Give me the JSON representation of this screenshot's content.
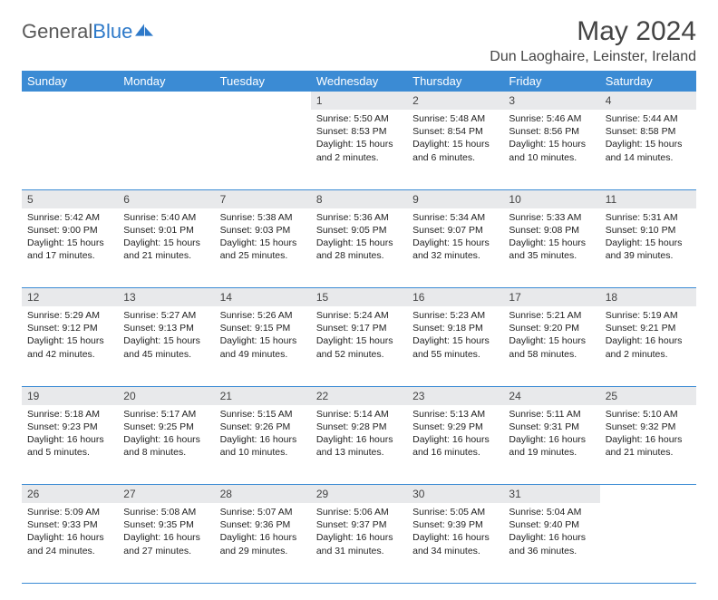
{
  "logo": {
    "text1": "General",
    "text2": "Blue"
  },
  "title": {
    "month": "May 2024",
    "location": "Dun Laoghaire, Leinster, Ireland"
  },
  "colors": {
    "header_bg": "#3b8bd4",
    "header_text": "#ffffff",
    "daynum_bg": "#e8e9eb",
    "divider": "#3b8bd4",
    "logo_gray": "#595959",
    "logo_blue": "#2d79c9"
  },
  "weekdays": [
    "Sunday",
    "Monday",
    "Tuesday",
    "Wednesday",
    "Thursday",
    "Friday",
    "Saturday"
  ],
  "weeks": [
    [
      null,
      null,
      null,
      {
        "n": "1",
        "sunrise": "5:50 AM",
        "sunset": "8:53 PM",
        "daylight": "15 hours and 2 minutes."
      },
      {
        "n": "2",
        "sunrise": "5:48 AM",
        "sunset": "8:54 PM",
        "daylight": "15 hours and 6 minutes."
      },
      {
        "n": "3",
        "sunrise": "5:46 AM",
        "sunset": "8:56 PM",
        "daylight": "15 hours and 10 minutes."
      },
      {
        "n": "4",
        "sunrise": "5:44 AM",
        "sunset": "8:58 PM",
        "daylight": "15 hours and 14 minutes."
      }
    ],
    [
      {
        "n": "5",
        "sunrise": "5:42 AM",
        "sunset": "9:00 PM",
        "daylight": "15 hours and 17 minutes."
      },
      {
        "n": "6",
        "sunrise": "5:40 AM",
        "sunset": "9:01 PM",
        "daylight": "15 hours and 21 minutes."
      },
      {
        "n": "7",
        "sunrise": "5:38 AM",
        "sunset": "9:03 PM",
        "daylight": "15 hours and 25 minutes."
      },
      {
        "n": "8",
        "sunrise": "5:36 AM",
        "sunset": "9:05 PM",
        "daylight": "15 hours and 28 minutes."
      },
      {
        "n": "9",
        "sunrise": "5:34 AM",
        "sunset": "9:07 PM",
        "daylight": "15 hours and 32 minutes."
      },
      {
        "n": "10",
        "sunrise": "5:33 AM",
        "sunset": "9:08 PM",
        "daylight": "15 hours and 35 minutes."
      },
      {
        "n": "11",
        "sunrise": "5:31 AM",
        "sunset": "9:10 PM",
        "daylight": "15 hours and 39 minutes."
      }
    ],
    [
      {
        "n": "12",
        "sunrise": "5:29 AM",
        "sunset": "9:12 PM",
        "daylight": "15 hours and 42 minutes."
      },
      {
        "n": "13",
        "sunrise": "5:27 AM",
        "sunset": "9:13 PM",
        "daylight": "15 hours and 45 minutes."
      },
      {
        "n": "14",
        "sunrise": "5:26 AM",
        "sunset": "9:15 PM",
        "daylight": "15 hours and 49 minutes."
      },
      {
        "n": "15",
        "sunrise": "5:24 AM",
        "sunset": "9:17 PM",
        "daylight": "15 hours and 52 minutes."
      },
      {
        "n": "16",
        "sunrise": "5:23 AM",
        "sunset": "9:18 PM",
        "daylight": "15 hours and 55 minutes."
      },
      {
        "n": "17",
        "sunrise": "5:21 AM",
        "sunset": "9:20 PM",
        "daylight": "15 hours and 58 minutes."
      },
      {
        "n": "18",
        "sunrise": "5:19 AM",
        "sunset": "9:21 PM",
        "daylight": "16 hours and 2 minutes."
      }
    ],
    [
      {
        "n": "19",
        "sunrise": "5:18 AM",
        "sunset": "9:23 PM",
        "daylight": "16 hours and 5 minutes."
      },
      {
        "n": "20",
        "sunrise": "5:17 AM",
        "sunset": "9:25 PM",
        "daylight": "16 hours and 8 minutes."
      },
      {
        "n": "21",
        "sunrise": "5:15 AM",
        "sunset": "9:26 PM",
        "daylight": "16 hours and 10 minutes."
      },
      {
        "n": "22",
        "sunrise": "5:14 AM",
        "sunset": "9:28 PM",
        "daylight": "16 hours and 13 minutes."
      },
      {
        "n": "23",
        "sunrise": "5:13 AM",
        "sunset": "9:29 PM",
        "daylight": "16 hours and 16 minutes."
      },
      {
        "n": "24",
        "sunrise": "5:11 AM",
        "sunset": "9:31 PM",
        "daylight": "16 hours and 19 minutes."
      },
      {
        "n": "25",
        "sunrise": "5:10 AM",
        "sunset": "9:32 PM",
        "daylight": "16 hours and 21 minutes."
      }
    ],
    [
      {
        "n": "26",
        "sunrise": "5:09 AM",
        "sunset": "9:33 PM",
        "daylight": "16 hours and 24 minutes."
      },
      {
        "n": "27",
        "sunrise": "5:08 AM",
        "sunset": "9:35 PM",
        "daylight": "16 hours and 27 minutes."
      },
      {
        "n": "28",
        "sunrise": "5:07 AM",
        "sunset": "9:36 PM",
        "daylight": "16 hours and 29 minutes."
      },
      {
        "n": "29",
        "sunrise": "5:06 AM",
        "sunset": "9:37 PM",
        "daylight": "16 hours and 31 minutes."
      },
      {
        "n": "30",
        "sunrise": "5:05 AM",
        "sunset": "9:39 PM",
        "daylight": "16 hours and 34 minutes."
      },
      {
        "n": "31",
        "sunrise": "5:04 AM",
        "sunset": "9:40 PM",
        "daylight": "16 hours and 36 minutes."
      },
      null
    ]
  ],
  "labels": {
    "sunrise": "Sunrise:",
    "sunset": "Sunset:",
    "daylight": "Daylight:"
  }
}
